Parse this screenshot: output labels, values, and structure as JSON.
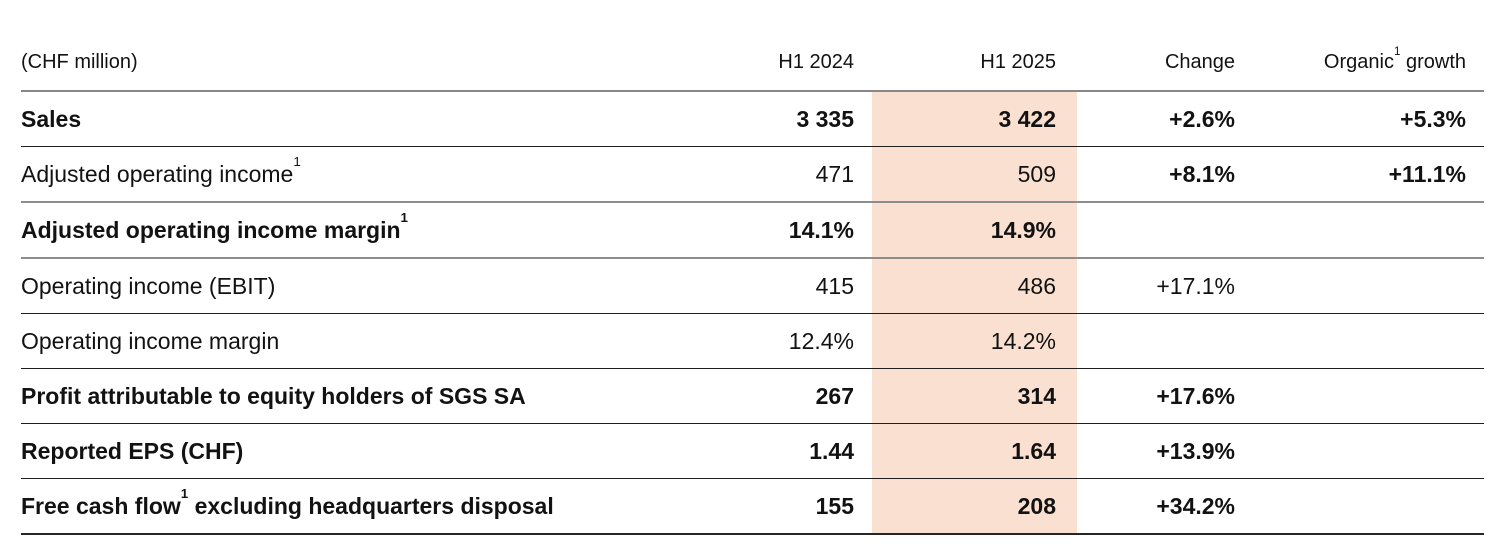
{
  "table": {
    "unit_label": "(CHF million)",
    "columns": [
      {
        "pre": "H1 2024",
        "sup": "",
        "post": ""
      },
      {
        "pre": "H1 2025",
        "sup": "",
        "post": ""
      },
      {
        "pre": "Change",
        "sup": "",
        "post": ""
      },
      {
        "pre": "Organic",
        "sup": "1",
        "post": " growth"
      }
    ],
    "rows": [
      {
        "label_pre": "Sales",
        "label_sup": "",
        "label_post": "",
        "h1_2024": "3 335",
        "h1_2025": "3 422",
        "change": "+2.6%",
        "organic": "+5.3%"
      },
      {
        "label_pre": "Adjusted operating income",
        "label_sup": "1",
        "label_post": "",
        "h1_2024": "471",
        "h1_2025": "509",
        "change": "+8.1%",
        "organic": "+11.1%"
      },
      {
        "label_pre": "Adjusted operating income margin",
        "label_sup": "1",
        "label_post": "",
        "h1_2024": "14.1%",
        "h1_2025": "14.9%",
        "change": "",
        "organic": ""
      },
      {
        "label_pre": "Operating income (EBIT)",
        "label_sup": "",
        "label_post": "",
        "h1_2024": "415",
        "h1_2025": "486",
        "change": "+17.1%",
        "organic": ""
      },
      {
        "label_pre": "Operating income margin",
        "label_sup": "",
        "label_post": "",
        "h1_2024": "12.4%",
        "h1_2025": "14.2%",
        "change": "",
        "organic": ""
      },
      {
        "label_pre": "Profit attributable to equity holders of SGS SA",
        "label_sup": "",
        "label_post": "",
        "h1_2024": "267",
        "h1_2025": "314",
        "change": "+17.6%",
        "organic": ""
      },
      {
        "label_pre": "Reported EPS (CHF)",
        "label_sup": "",
        "label_post": "",
        "h1_2024": "1.44",
        "h1_2025": "1.64",
        "change": "+13.9%",
        "organic": ""
      },
      {
        "label_pre": "Free cash flow",
        "label_sup": "1",
        "label_post": " excluding headquarters disposal",
        "h1_2024": "155",
        "h1_2025": "208",
        "change": "+34.2%",
        "organic": ""
      }
    ]
  },
  "colors": {
    "highlight_column": "#f9e0d0",
    "header_rule": "#878787",
    "row_rule": "#1f1f1f",
    "text": "#121212"
  }
}
